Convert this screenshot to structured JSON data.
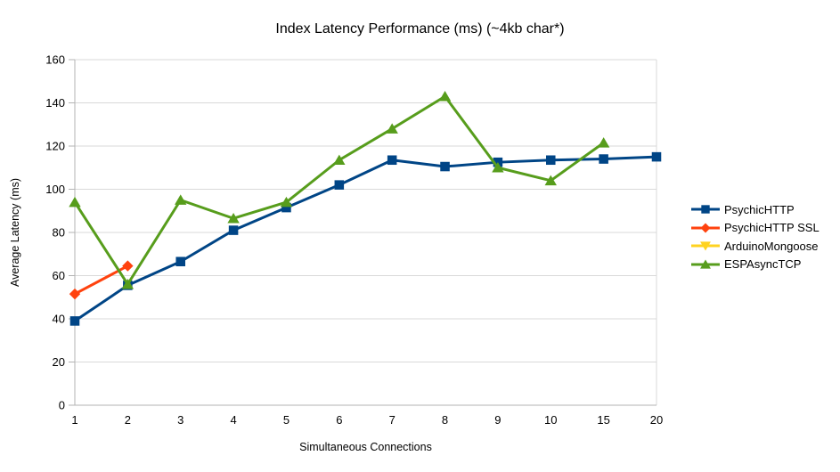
{
  "chart_data": {
    "type": "line",
    "title": "Index Latency Performance (ms) (~4kb char*)",
    "xlabel": "Simultaneous Connections",
    "ylabel": "Average Latency (ms)",
    "categories": [
      "1",
      "2",
      "3",
      "4",
      "5",
      "6",
      "7",
      "8",
      "9",
      "10",
      "15",
      "20"
    ],
    "ylim": [
      0,
      160
    ],
    "ytick_step": 20,
    "ytick_labels": [
      "0",
      "20",
      "40",
      "60",
      "80",
      "100",
      "120",
      "140",
      "160"
    ],
    "grid": true,
    "legend_position": "right",
    "series": [
      {
        "name": "PsychicHTTP",
        "color": "#004586",
        "marker": "square",
        "values": [
          39,
          55.5,
          66.5,
          81,
          91.5,
          102,
          113.5,
          110.5,
          112.5,
          113.5,
          114,
          115
        ]
      },
      {
        "name": "PsychicHTTP SSL",
        "color": "#FF420E",
        "marker": "diamond",
        "values": [
          51.5,
          64.5,
          null,
          null,
          null,
          null,
          null,
          null,
          null,
          null,
          null,
          null
        ]
      },
      {
        "name": "ArduinoMongoose",
        "color": "#FFD320",
        "marker": "triangle-down",
        "values": [
          null,
          null,
          null,
          null,
          null,
          null,
          null,
          null,
          null,
          null,
          null,
          null
        ]
      },
      {
        "name": "ESPAsyncTCP",
        "color": "#579D1C",
        "marker": "triangle-up",
        "values": [
          94,
          56,
          95,
          86.5,
          94,
          113.5,
          128,
          143,
          110,
          104,
          121.5,
          null
        ]
      }
    ],
    "style": {
      "grid_color": "#d9d9d9",
      "axis_color": "#b3b3b3",
      "text_color": "#000000",
      "background": "#ffffff",
      "line_width": 3
    }
  }
}
